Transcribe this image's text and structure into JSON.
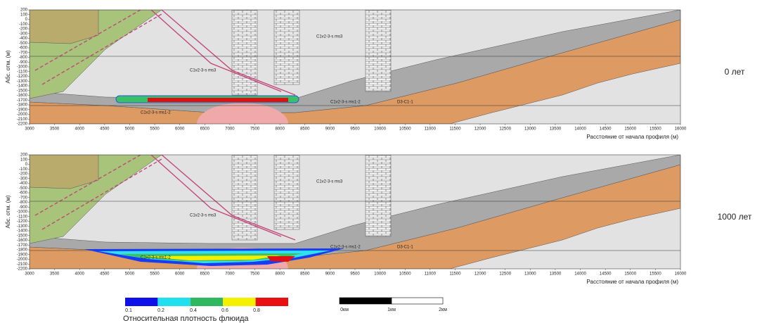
{
  "panels": [
    {
      "time_label": "0 лет",
      "labels": [
        "C1v2-3-s ms3",
        "C1v2-3-s ms3",
        "C1v2-3-s ms1-2",
        "C1v2-3-s ms1-2",
        "D3-C1-1"
      ]
    },
    {
      "time_label": "1000 лет",
      "labels": [
        "C1v2-3-s ms3",
        "C1v2-3-s ms3",
        "C1v2-3-s ms1-2",
        "C1v2-3-s ms1-2",
        "D3-C1-1"
      ]
    }
  ],
  "axes": {
    "y_label": "Абс. отм. (м)",
    "x_label": "Расстояние от начала профиля (м)",
    "yticks": [
      200,
      100,
      0,
      -100,
      -200,
      -300,
      -400,
      -500,
      -600,
      -700,
      -800,
      -900,
      -1000,
      -1100,
      -1200,
      -1300,
      -1400,
      -1500,
      -1600,
      -1700,
      -1800,
      -1900,
      -2000,
      -2100,
      -2200
    ],
    "xticks": [
      3000,
      3500,
      4000,
      4500,
      5000,
      5500,
      6000,
      6500,
      7000,
      7500,
      8000,
      8500,
      9000,
      9500,
      10000,
      10500,
      11000,
      11500,
      12000,
      12500,
      13000,
      13500,
      14000,
      14500,
      15000,
      15500,
      16000
    ]
  },
  "colorbar": {
    "ticks": [
      0.1,
      0.2,
      0.4,
      0.6,
      0.8
    ],
    "label": "Относительная плотность флюида"
  },
  "scale_bar": {
    "labels": [
      "0км",
      "1км",
      "2км"
    ]
  }
}
